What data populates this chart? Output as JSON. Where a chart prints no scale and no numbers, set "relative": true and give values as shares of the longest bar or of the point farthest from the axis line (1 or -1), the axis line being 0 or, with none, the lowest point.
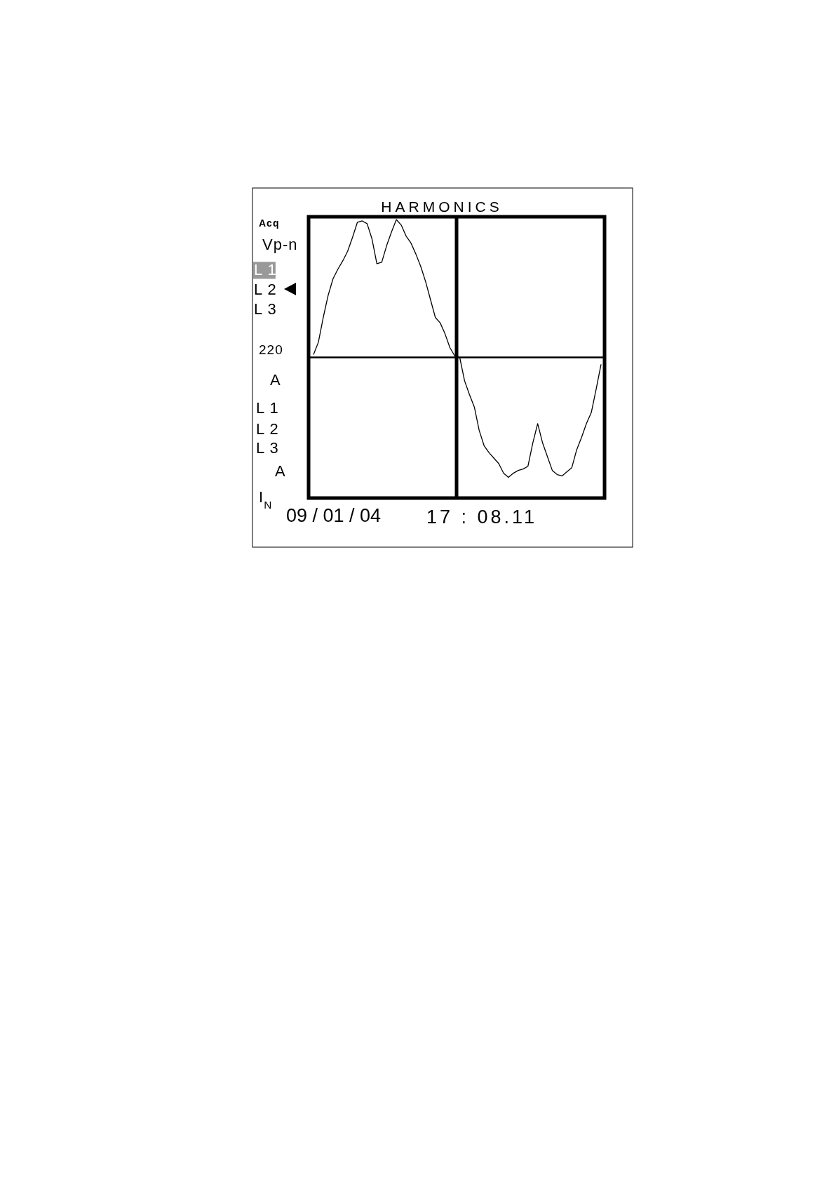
{
  "chart_data": {
    "type": "line",
    "title": "HARMONICS",
    "relative": true,
    "marker": "none",
    "line_style": "solid",
    "categories": [
      null,
      null,
      null,
      null,
      null,
      null,
      null,
      null,
      null,
      null,
      null,
      null,
      null,
      null,
      null,
      null,
      null,
      null,
      null,
      null,
      null,
      null,
      null,
      null,
      null,
      null,
      null,
      null,
      null,
      null,
      null,
      null,
      null,
      null,
      null,
      null,
      null,
      null,
      null,
      null,
      null,
      null,
      null,
      null,
      null,
      null,
      null,
      null,
      null,
      null,
      null,
      null,
      null,
      null,
      null,
      null,
      null,
      null,
      null,
      null
    ],
    "series": [
      {
        "color": "#000000",
        "values": [
          0.02,
          0.11,
          0.29,
          0.45,
          0.57,
          0.64,
          0.7,
          0.77,
          0.87,
          0.98,
          0.99,
          0.97,
          0.86,
          0.68,
          0.69,
          0.81,
          0.91,
          1,
          0.96,
          0.88,
          0.83,
          0.75,
          0.66,
          0.55,
          0.42,
          0.29,
          0.25,
          0.17,
          0.07,
          0.01,
          0,
          -0.17,
          -0.27,
          -0.36,
          -0.53,
          -0.64,
          -0.69,
          -0.73,
          -0.77,
          -0.84,
          -0.87,
          -0.84,
          -0.82,
          -0.81,
          -0.79,
          -0.62,
          -0.48,
          -0.62,
          -0.72,
          -0.82,
          -0.85,
          -0.86,
          -0.83,
          -0.8,
          -0.67,
          -0.58,
          -0.48,
          -0.4,
          -0.23,
          -0.05
        ]
      }
    ],
    "annotations": [
      "Acq",
      "Vp-n",
      "L 1",
      "L 2",
      "L 3",
      "220",
      "A",
      "L 1",
      "L 2",
      "L 3",
      "A",
      "I$_{N}$",
      "09 / 01 / 04",
      "17 : 08.11"
    ]
  }
}
